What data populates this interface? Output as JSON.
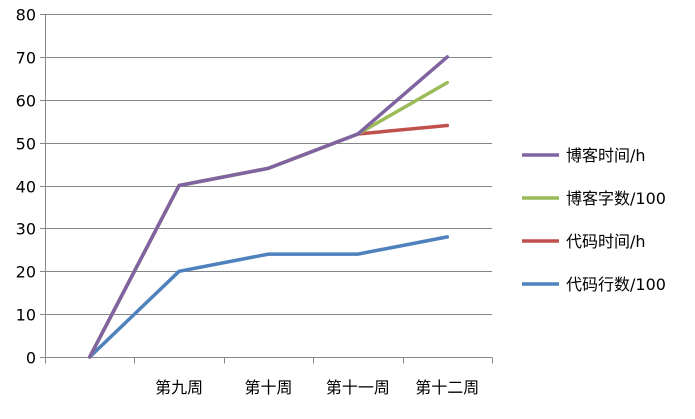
{
  "chart_data": {
    "type": "line",
    "categories": [
      "",
      "第九周",
      "第十周",
      "第十一周",
      "第十二周"
    ],
    "ylim": [
      0,
      80
    ],
    "yticks": [
      0,
      10,
      20,
      30,
      40,
      50,
      60,
      70,
      80
    ],
    "grid": "horizontal",
    "legend_position": "right",
    "series": [
      {
        "name": "博客时间/h",
        "color": "#8064a2",
        "values": [
          0,
          40,
          44,
          52,
          70
        ]
      },
      {
        "name": "博客字数/100",
        "color": "#9bbb59",
        "values": [
          0,
          40,
          44,
          52,
          64
        ]
      },
      {
        "name": "代码时间/h",
        "color": "#c0504d",
        "values": [
          0,
          40,
          44,
          52,
          54
        ]
      },
      {
        "name": "代码行数/100",
        "color": "#4f81bd",
        "values": [
          0,
          20,
          24,
          24,
          28
        ]
      }
    ]
  }
}
